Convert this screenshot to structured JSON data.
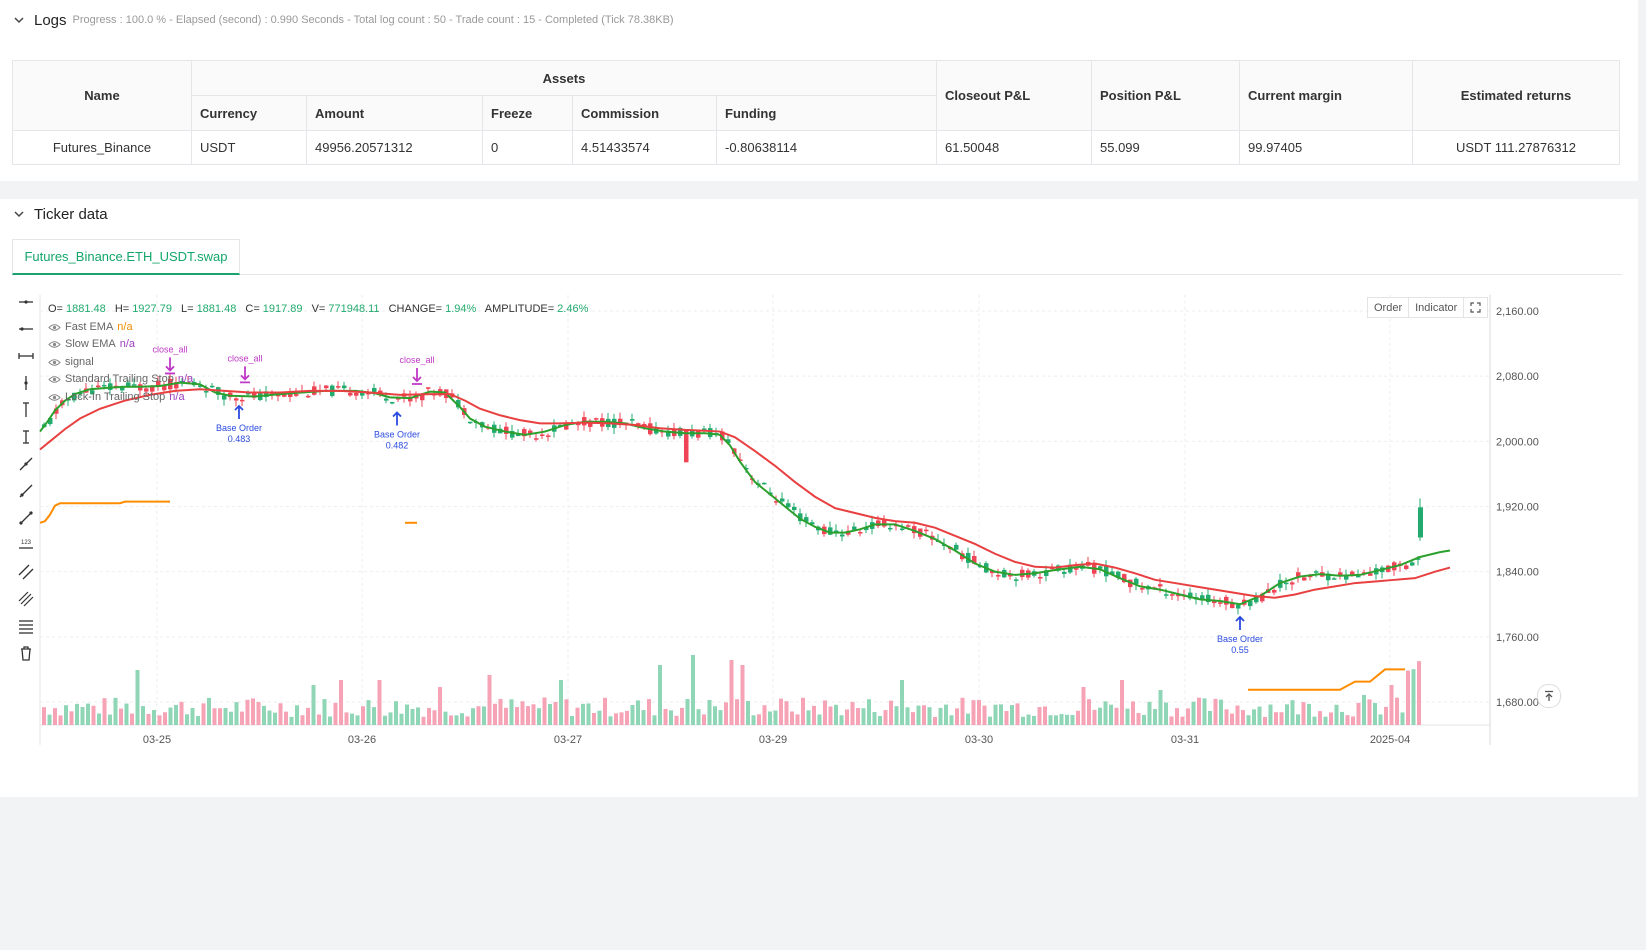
{
  "logs": {
    "title": "Logs",
    "summary": "Progress : 100.0 % - Elapsed (second) : 0.990  Seconds - Total log count : 50 - Trade count : 15 - Completed (Tick 78.38KB)",
    "table": {
      "col_name": "Name",
      "group_assets": "Assets",
      "sub_cols": [
        "Currency",
        "Amount",
        "Freeze",
        "Commission",
        "Funding"
      ],
      "col_closeout": "Closeout P&L",
      "col_position": "Position P&L",
      "col_margin": "Current margin",
      "col_returns": "Estimated returns",
      "row": {
        "name": "Futures_Binance",
        "currency": "USDT",
        "amount": "49956.20571312",
        "freeze": "0",
        "commission": "4.51433574",
        "funding": "-0.80638114",
        "closeout": "61.50048",
        "position": "55.099",
        "margin": "99.97405",
        "returns": "USDT 111.27876312"
      }
    }
  },
  "ticker": {
    "title": "Ticker data",
    "tab_label": "Futures_Binance.ETH_USDT.swap",
    "buttons": {
      "order": "Order",
      "indicator": "Indicator"
    },
    "ohlc": {
      "o_label": "O=",
      "o": "1881.48",
      "h_label": "H=",
      "h": "1927.79",
      "l_label": "L=",
      "l": "1881.48",
      "c_label": "C=",
      "c": "1917.89",
      "v_label": "V=",
      "v": "771948.11",
      "chg_label": "CHANGE=",
      "chg": "1.94%",
      "amp_label": "AMPLITUDE=",
      "amp": "2.46%"
    },
    "legend": [
      {
        "name": "Fast EMA",
        "value": "n/a",
        "color": "#f08c00"
      },
      {
        "name": "Slow EMA",
        "value": "n/a",
        "color": "#9c3fbf"
      },
      {
        "name": "signal",
        "value": "",
        "color": ""
      },
      {
        "name": "Standard Trailing Stop",
        "value": "n/a",
        "color": "#9c3fbf"
      },
      {
        "name": "Lock-In Trailing Stop",
        "value": "n/a",
        "color": "#9c3fbf"
      }
    ]
  },
  "chart_data": {
    "type": "candlestick",
    "symbol": "Futures_Binance.ETH_USDT.swap",
    "price_axis": {
      "ticks": [
        "2,160.00",
        "2,080.00",
        "2,000.00",
        "1,920.00",
        "1,840.00",
        "1,760.00",
        "1,680.00"
      ],
      "range": [
        1670,
        2180
      ]
    },
    "time_axis": {
      "ticks": [
        "03-25",
        "03-26",
        "03-27",
        "03-29",
        "03-30",
        "03-31",
        "2025-04"
      ]
    },
    "series": [
      {
        "name": "Fast EMA",
        "color": "#2ca02c",
        "x": [
          0,
          8,
          15,
          25,
          35,
          50,
          70,
          85,
          100,
          120,
          140,
          160,
          175,
          190,
          215,
          240,
          262,
          285,
          300,
          316,
          335,
          350,
          370,
          390,
          405,
          420,
          430,
          445,
          465,
          485,
          505,
          525,
          545,
          565,
          585,
          605,
          625,
          645,
          665,
          680,
          690,
          700,
          715,
          730,
          745,
          760,
          775,
          790,
          805,
          820,
          835,
          855,
          875,
          895,
          915,
          935,
          955,
          975,
          995,
          1015,
          1040,
          1060,
          1080,
          1100,
          1120,
          1140,
          1160,
          1180,
          1200,
          1220,
          1240,
          1260,
          1280,
          1300,
          1320,
          1340,
          1360,
          1380,
          1400,
          1410
        ],
        "y": [
          2012,
          2025,
          2038,
          2050,
          2058,
          2064,
          2066,
          2067,
          2067,
          2068,
          2072,
          2070,
          2060,
          2056,
          2055,
          2058,
          2060,
          2062,
          2062,
          2062,
          2059,
          2054,
          2053,
          2061,
          2060,
          2042,
          2028,
          2018,
          2012,
          2008,
          2012,
          2020,
          2024,
          2024,
          2022,
          2016,
          2012,
          2010,
          2010,
          2008,
          1995,
          1975,
          1950,
          1935,
          1920,
          1905,
          1895,
          1888,
          1888,
          1892,
          1898,
          1898,
          1890,
          1880,
          1866,
          1850,
          1840,
          1836,
          1838,
          1842,
          1846,
          1843,
          1832,
          1822,
          1818,
          1812,
          1806,
          1804,
          1800,
          1810,
          1826,
          1834,
          1837,
          1835,
          1836,
          1842,
          1848,
          1858,
          1864,
          1866
        ]
      },
      {
        "name": "Slow EMA",
        "color": "#e84040",
        "x": [
          0,
          10,
          25,
          40,
          60,
          85,
          110,
          135,
          160,
          185,
          210,
          240,
          270,
          300,
          330,
          360,
          390,
          410,
          425,
          440,
          460,
          480,
          500,
          520,
          545,
          570,
          595,
          620,
          645,
          665,
          680,
          695,
          715,
          735,
          755,
          775,
          795,
          815,
          835,
          855,
          875,
          895,
          915,
          935,
          955,
          975,
          995,
          1015,
          1035,
          1055,
          1075,
          1095,
          1115,
          1135,
          1155,
          1175,
          1195,
          1215,
          1235,
          1255,
          1275,
          1295,
          1315,
          1335,
          1355,
          1375,
          1395,
          1410
        ],
        "y": [
          1990,
          2000,
          2015,
          2028,
          2040,
          2050,
          2057,
          2062,
          2064,
          2062,
          2060,
          2060,
          2062,
          2062,
          2060,
          2057,
          2058,
          2058,
          2050,
          2040,
          2032,
          2026,
          2022,
          2022,
          2023,
          2022,
          2020,
          2016,
          2014,
          2013,
          2012,
          2005,
          1988,
          1970,
          1950,
          1932,
          1918,
          1912,
          1906,
          1902,
          1900,
          1894,
          1884,
          1874,
          1862,
          1852,
          1846,
          1845,
          1848,
          1850,
          1845,
          1838,
          1830,
          1826,
          1822,
          1818,
          1814,
          1810,
          1808,
          1812,
          1818,
          1822,
          1826,
          1828,
          1830,
          1832,
          1840,
          1845
        ]
      },
      {
        "name": "Standard Trailing Stop",
        "color": "#ff8c00",
        "segments": [
          {
            "x": [
              0,
              5,
              10,
              15,
              20,
              25,
              80,
              85,
              100,
              130
            ],
            "y": [
              1900,
              1902,
              1910,
              1921,
              1924,
              1924,
              1924,
              1926,
              1926,
              1926
            ]
          },
          {
            "x": [
              365,
              377
            ],
            "y": [
              1900,
              1900
            ]
          },
          {
            "x": [
              1208,
              1300,
              1315,
              1330,
              1345,
              1365
            ],
            "y": [
              1695,
              1695,
              1705,
              1705,
              1720,
              1720
            ]
          }
        ]
      }
    ],
    "markers": [
      {
        "label": "close_all",
        "x": 130,
        "price": 2076,
        "dir": "down",
        "color": "#c038c8"
      },
      {
        "label": "close_all",
        "x": 205,
        "price": 2065,
        "dir": "down",
        "color": "#c038c8"
      },
      {
        "label": "close_all",
        "x": 377,
        "price": 2063,
        "dir": "down",
        "color": "#c038c8"
      },
      {
        "label": "Base Order",
        "sub": "0.483",
        "x": 199,
        "price": 2052,
        "dir": "up",
        "color": "#2b4be0"
      },
      {
        "label": "Base Order",
        "sub": "0.482",
        "x": 357,
        "price": 2044,
        "dir": "up",
        "color": "#2b4be0"
      },
      {
        "label": "Base Order",
        "sub": "0.55",
        "x": 1200,
        "price": 1793,
        "dir": "up",
        "color": "#2b4be0"
      }
    ]
  }
}
